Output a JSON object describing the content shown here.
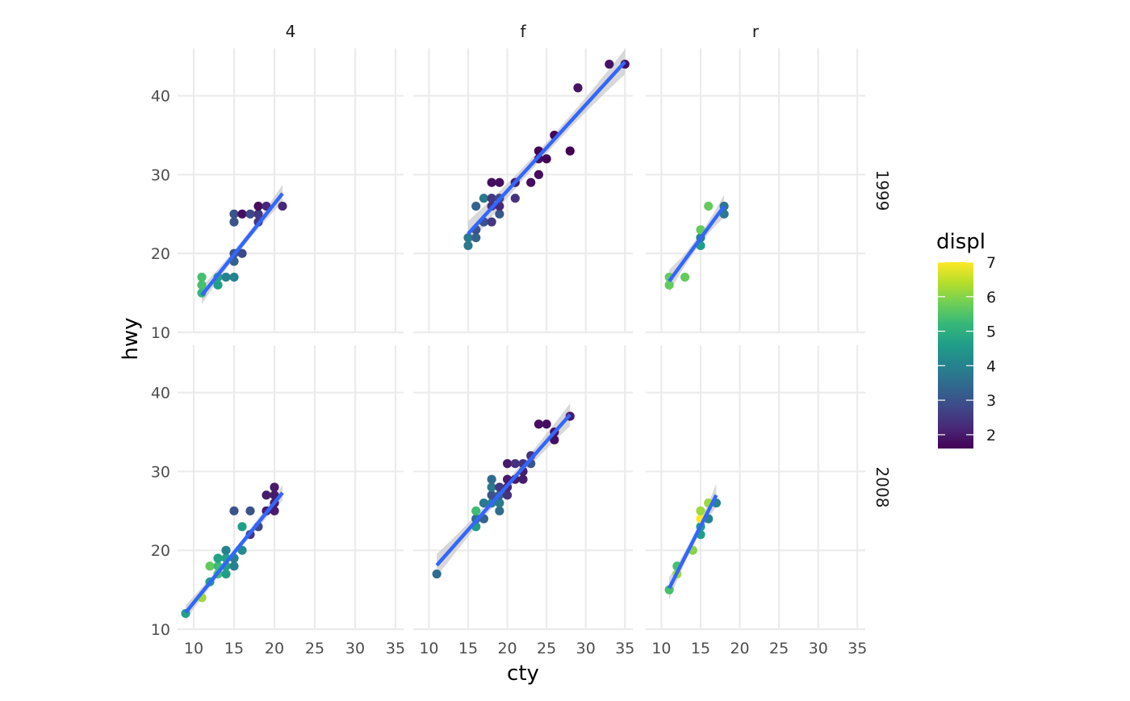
{
  "chart_data": {
    "type": "scatter",
    "facets": {
      "columns": [
        "4",
        "f",
        "r"
      ],
      "rows": [
        "1999",
        "2008"
      ]
    },
    "xlabel": "cty",
    "ylabel": "hwy",
    "xlim": [
      8,
      36
    ],
    "ylim": [
      10,
      46
    ],
    "x_ticks": [
      10,
      15,
      20,
      25,
      30,
      35
    ],
    "y_ticks": [
      10,
      20,
      30,
      40
    ],
    "grid": true,
    "legend": {
      "title": "displ",
      "position": "right",
      "min": 1.6,
      "max": 7.0,
      "ticks": [
        2,
        3,
        4,
        5,
        6,
        7
      ]
    },
    "colormap": [
      "#440154",
      "#482878",
      "#3e4989",
      "#31688e",
      "#26828e",
      "#1f9e89",
      "#35b779",
      "#6ece58",
      "#b5de2b",
      "#fde725"
    ],
    "smooth_color": "#3366ff",
    "band_color": "#c8c8c8",
    "panels": [
      {
        "col": "4",
        "row": "1999",
        "fit": {
          "x0": 11,
          "y0": 14.7,
          "x1": 21,
          "y1": 27.6,
          "se": 0.7
        },
        "points": [
          {
            "x": 11,
            "y": 15,
            "displ": 5.2
          },
          {
            "x": 11,
            "y": 16,
            "displ": 5.4
          },
          {
            "x": 11,
            "y": 17,
            "displ": 5.4
          },
          {
            "x": 13,
            "y": 16,
            "displ": 4.6
          },
          {
            "x": 13,
            "y": 17,
            "displ": 4.7
          },
          {
            "x": 14,
            "y": 17,
            "displ": 4.0
          },
          {
            "x": 15,
            "y": 17,
            "displ": 4.0
          },
          {
            "x": 15,
            "y": 19,
            "displ": 3.3
          },
          {
            "x": 15,
            "y": 20,
            "displ": 3.0
          },
          {
            "x": 15,
            "y": 24,
            "displ": 3.0
          },
          {
            "x": 15,
            "y": 25,
            "displ": 3.0
          },
          {
            "x": 16,
            "y": 20,
            "displ": 2.8
          },
          {
            "x": 16,
            "y": 25,
            "displ": 1.8
          },
          {
            "x": 17,
            "y": 25,
            "displ": 2.8
          },
          {
            "x": 18,
            "y": 24,
            "displ": 2.5
          },
          {
            "x": 18,
            "y": 25,
            "displ": 2.5
          },
          {
            "x": 18,
            "y": 26,
            "displ": 1.8
          },
          {
            "x": 19,
            "y": 26,
            "displ": 2.2
          },
          {
            "x": 21,
            "y": 26,
            "displ": 2.2
          }
        ]
      },
      {
        "col": "f",
        "row": "1999",
        "fit": {
          "x0": 15,
          "y0": 22.5,
          "x1": 35,
          "y1": 44.3,
          "se": 1.0
        },
        "points": [
          {
            "x": 15,
            "y": 21,
            "displ": 3.8
          },
          {
            "x": 15,
            "y": 22,
            "displ": 3.8
          },
          {
            "x": 16,
            "y": 22,
            "displ": 3.3
          },
          {
            "x": 16,
            "y": 23,
            "displ": 3.0
          },
          {
            "x": 16,
            "y": 26,
            "displ": 3.3
          },
          {
            "x": 17,
            "y": 24,
            "displ": 3.0
          },
          {
            "x": 17,
            "y": 27,
            "displ": 3.8
          },
          {
            "x": 18,
            "y": 24,
            "displ": 2.5
          },
          {
            "x": 18,
            "y": 26,
            "displ": 2.4
          },
          {
            "x": 18,
            "y": 27,
            "displ": 2.5
          },
          {
            "x": 18,
            "y": 29,
            "displ": 1.8
          },
          {
            "x": 19,
            "y": 25,
            "displ": 3.1
          },
          {
            "x": 19,
            "y": 26,
            "displ": 2.2
          },
          {
            "x": 19,
            "y": 27,
            "displ": 2.8
          },
          {
            "x": 19,
            "y": 29,
            "displ": 1.8
          },
          {
            "x": 21,
            "y": 27,
            "displ": 2.4
          },
          {
            "x": 21,
            "y": 29,
            "displ": 2.0
          },
          {
            "x": 23,
            "y": 29,
            "displ": 1.8
          },
          {
            "x": 24,
            "y": 30,
            "displ": 1.8
          },
          {
            "x": 24,
            "y": 32,
            "displ": 1.8
          },
          {
            "x": 24,
            "y": 33,
            "displ": 1.6
          },
          {
            "x": 25,
            "y": 32,
            "displ": 1.6
          },
          {
            "x": 26,
            "y": 35,
            "displ": 1.6
          },
          {
            "x": 28,
            "y": 33,
            "displ": 1.6
          },
          {
            "x": 29,
            "y": 41,
            "displ": 1.9
          },
          {
            "x": 33,
            "y": 44,
            "displ": 1.9
          },
          {
            "x": 35,
            "y": 44,
            "displ": 1.8
          }
        ]
      },
      {
        "col": "r",
        "row": "1999",
        "fit": {
          "x0": 11,
          "y0": 16.5,
          "x1": 18,
          "y1": 26.0,
          "se": 0.9
        },
        "points": [
          {
            "x": 11,
            "y": 16,
            "displ": 5.7
          },
          {
            "x": 11,
            "y": 17,
            "displ": 5.7
          },
          {
            "x": 13,
            "y": 17,
            "displ": 5.7
          },
          {
            "x": 15,
            "y": 21,
            "displ": 4.6
          },
          {
            "x": 15,
            "y": 22,
            "displ": 4.0
          },
          {
            "x": 15,
            "y": 23,
            "displ": 5.7
          },
          {
            "x": 16,
            "y": 26,
            "displ": 5.7
          },
          {
            "x": 18,
            "y": 25,
            "displ": 3.8
          },
          {
            "x": 18,
            "y": 26,
            "displ": 3.8
          }
        ]
      },
      {
        "col": "4",
        "row": "2008",
        "fit": {
          "x0": 9,
          "y0": 12.1,
          "x1": 21,
          "y1": 27.3,
          "se": 0.6
        },
        "points": [
          {
            "x": 9,
            "y": 12,
            "displ": 4.7
          },
          {
            "x": 11,
            "y": 14,
            "displ": 6.2
          },
          {
            "x": 12,
            "y": 16,
            "displ": 4.7
          },
          {
            "x": 12,
            "y": 18,
            "displ": 5.7
          },
          {
            "x": 13,
            "y": 17,
            "displ": 5.4
          },
          {
            "x": 13,
            "y": 18,
            "displ": 5.3
          },
          {
            "x": 13,
            "y": 19,
            "displ": 4.7
          },
          {
            "x": 14,
            "y": 17,
            "displ": 4.6
          },
          {
            "x": 14,
            "y": 18,
            "displ": 4.7
          },
          {
            "x": 14,
            "y": 19,
            "displ": 4.7
          },
          {
            "x": 14,
            "y": 20,
            "displ": 4.0
          },
          {
            "x": 15,
            "y": 18,
            "displ": 4.0
          },
          {
            "x": 15,
            "y": 19,
            "displ": 4.0
          },
          {
            "x": 15,
            "y": 25,
            "displ": 3.0
          },
          {
            "x": 16,
            "y": 20,
            "displ": 4.2
          },
          {
            "x": 16,
            "y": 23,
            "displ": 4.6
          },
          {
            "x": 17,
            "y": 22,
            "displ": 2.5
          },
          {
            "x": 17,
            "y": 25,
            "displ": 3.0
          },
          {
            "x": 18,
            "y": 23,
            "displ": 2.8
          },
          {
            "x": 19,
            "y": 25,
            "displ": 2.0
          },
          {
            "x": 19,
            "y": 27,
            "displ": 2.0
          },
          {
            "x": 20,
            "y": 25,
            "displ": 2.0
          },
          {
            "x": 20,
            "y": 26,
            "displ": 2.0
          },
          {
            "x": 20,
            "y": 27,
            "displ": 2.0
          },
          {
            "x": 20,
            "y": 28,
            "displ": 2.0
          }
        ]
      },
      {
        "col": "f",
        "row": "2008",
        "fit": {
          "x0": 11,
          "y0": 18.1,
          "x1": 28,
          "y1": 37.2,
          "se": 0.9
        },
        "points": [
          {
            "x": 11,
            "y": 17,
            "displ": 3.5
          },
          {
            "x": 16,
            "y": 23,
            "displ": 4.6
          },
          {
            "x": 16,
            "y": 24,
            "displ": 3.5
          },
          {
            "x": 16,
            "y": 25,
            "displ": 5.3
          },
          {
            "x": 17,
            "y": 24,
            "displ": 3.3
          },
          {
            "x": 17,
            "y": 26,
            "displ": 3.8
          },
          {
            "x": 18,
            "y": 26,
            "displ": 4.0
          },
          {
            "x": 18,
            "y": 27,
            "displ": 3.0
          },
          {
            "x": 18,
            "y": 28,
            "displ": 3.8
          },
          {
            "x": 18,
            "y": 29,
            "displ": 3.5
          },
          {
            "x": 19,
            "y": 25,
            "displ": 3.5
          },
          {
            "x": 19,
            "y": 26,
            "displ": 3.8
          },
          {
            "x": 19,
            "y": 27,
            "displ": 3.3
          },
          {
            "x": 19,
            "y": 28,
            "displ": 2.5
          },
          {
            "x": 20,
            "y": 27,
            "displ": 2.4
          },
          {
            "x": 20,
            "y": 28,
            "displ": 2.2
          },
          {
            "x": 20,
            "y": 29,
            "displ": 2.0
          },
          {
            "x": 20,
            "y": 31,
            "displ": 2.0
          },
          {
            "x": 21,
            "y": 29,
            "displ": 2.0
          },
          {
            "x": 21,
            "y": 31,
            "displ": 2.4
          },
          {
            "x": 22,
            "y": 29,
            "displ": 2.0
          },
          {
            "x": 22,
            "y": 30,
            "displ": 2.0
          },
          {
            "x": 22,
            "y": 31,
            "displ": 2.4
          },
          {
            "x": 23,
            "y": 31,
            "displ": 3.0
          },
          {
            "x": 23,
            "y": 32,
            "displ": 2.4
          },
          {
            "x": 24,
            "y": 36,
            "displ": 1.8
          },
          {
            "x": 25,
            "y": 36,
            "displ": 1.8
          },
          {
            "x": 26,
            "y": 34,
            "displ": 1.8
          },
          {
            "x": 26,
            "y": 35,
            "displ": 1.8
          },
          {
            "x": 28,
            "y": 37,
            "displ": 2.0
          }
        ]
      },
      {
        "col": "r",
        "row": "2008",
        "fit": {
          "x0": 11,
          "y0": 15.2,
          "x1": 17,
          "y1": 27.0,
          "se": 0.9
        },
        "points": [
          {
            "x": 11,
            "y": 15,
            "displ": 5.4
          },
          {
            "x": 12,
            "y": 17,
            "displ": 6.2
          },
          {
            "x": 12,
            "y": 18,
            "displ": 5.4
          },
          {
            "x": 14,
            "y": 20,
            "displ": 6.0
          },
          {
            "x": 15,
            "y": 22,
            "displ": 4.6
          },
          {
            "x": 15,
            "y": 23,
            "displ": 4.6
          },
          {
            "x": 15,
            "y": 24,
            "displ": 7.0
          },
          {
            "x": 15,
            "y": 25,
            "displ": 6.2
          },
          {
            "x": 16,
            "y": 24,
            "displ": 4.0
          },
          {
            "x": 16,
            "y": 26,
            "displ": 6.2
          },
          {
            "x": 17,
            "y": 26,
            "displ": 4.0
          }
        ]
      }
    ]
  }
}
